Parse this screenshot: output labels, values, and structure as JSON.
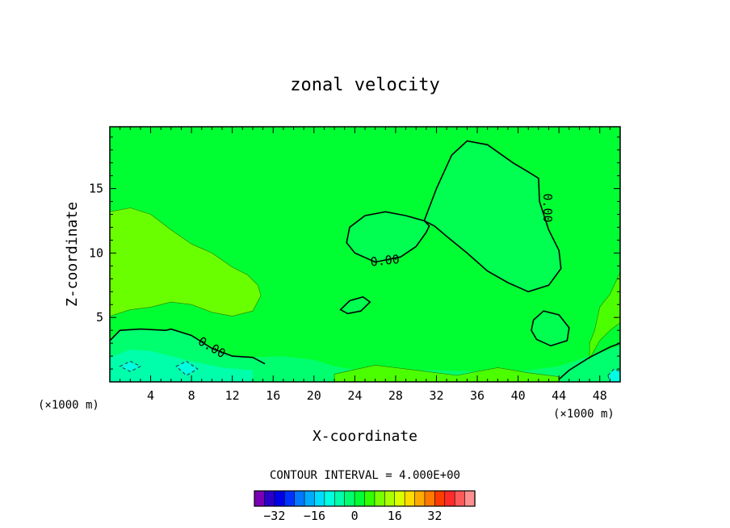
{
  "chart_data": {
    "type": "heatmap",
    "title": "zonal velocity",
    "xlabel": "X-coordinate",
    "ylabel": "Z-coordinate",
    "x_unit": "(×1000 m)",
    "xlim": [
      0,
      50
    ],
    "ylim": [
      0,
      19.8
    ],
    "x_ticks": [
      4,
      8,
      12,
      16,
      20,
      24,
      28,
      32,
      36,
      40,
      44,
      48
    ],
    "y_ticks": [
      5,
      10,
      15
    ],
    "contour_interval_text": "CONTOUR INTERVAL = 4.000E+00",
    "contour_labels": [
      "0.00",
      "0.00",
      "0.00"
    ],
    "colorbar": {
      "ticks": [
        -32,
        -16,
        0,
        16,
        32
      ],
      "tick_labels": [
        "-32",
        "-16",
        "0",
        "16",
        "32"
      ],
      "colors": [
        "#7a00b4",
        "#2a00c8",
        "#0000e6",
        "#0032ff",
        "#0078ff",
        "#00aaff",
        "#00dcff",
        "#00ffe0",
        "#00ffaa",
        "#00ff6e",
        "#00ff32",
        "#32ff00",
        "#78ff00",
        "#aaff00",
        "#dcff00",
        "#ffdc00",
        "#ffaa00",
        "#ff7800",
        "#ff3c00",
        "#ff2a2a",
        "#ff5a5a",
        "#ff9090"
      ]
    },
    "background_color": "#00ff32",
    "grid": false
  }
}
